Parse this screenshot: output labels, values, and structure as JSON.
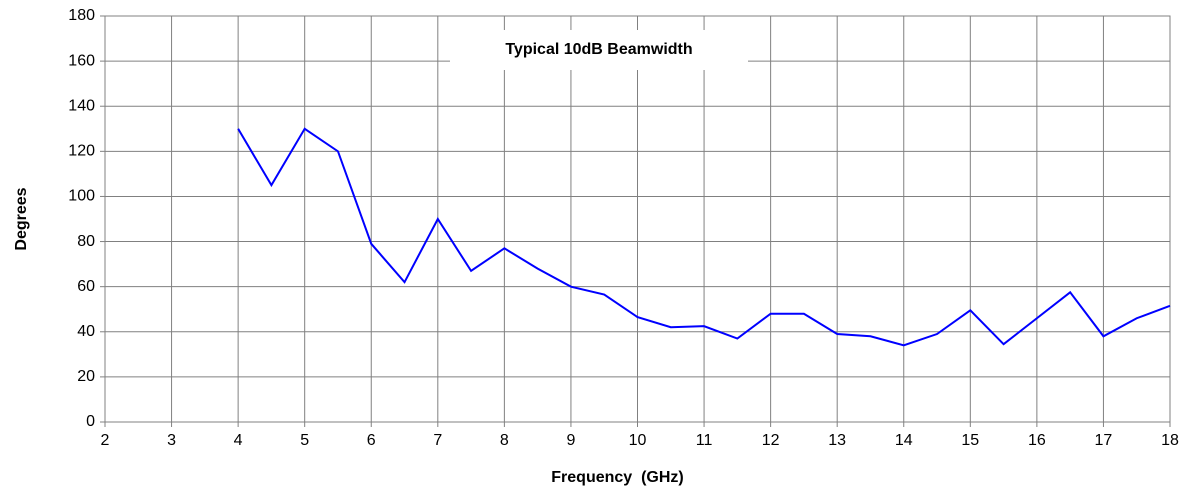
{
  "chart_data": {
    "type": "line",
    "title": "Typical 10dB Beamwidth",
    "xlabel": "Frequency  (GHz)",
    "ylabel": "Degrees",
    "x": [
      4,
      4.5,
      5,
      5.5,
      6,
      6.5,
      7,
      7.5,
      8,
      8.5,
      9,
      9.5,
      10,
      10.5,
      11,
      11.5,
      12,
      12.5,
      13,
      13.5,
      14,
      14.5,
      15,
      15.5,
      16,
      16.5,
      17,
      17.5,
      18
    ],
    "series": [
      {
        "name": "Beamwidth",
        "color": "#0000ff",
        "values": [
          130,
          105,
          130,
          120,
          79,
          62,
          90,
          67,
          77,
          68,
          60,
          56.5,
          46.5,
          42,
          42.5,
          37,
          48,
          48,
          39,
          38,
          34,
          39,
          49.5,
          34.5,
          46,
          57.5,
          38,
          46,
          51.5
        ]
      }
    ],
    "xlim": [
      2,
      18
    ],
    "xticks": [
      2,
      3,
      4,
      5,
      6,
      7,
      8,
      9,
      10,
      11,
      12,
      13,
      14,
      15,
      16,
      17,
      18
    ],
    "ylim": [
      0,
      180
    ],
    "yticks": [
      0,
      20,
      40,
      60,
      80,
      100,
      120,
      140,
      160,
      180
    ],
    "grid": true
  }
}
